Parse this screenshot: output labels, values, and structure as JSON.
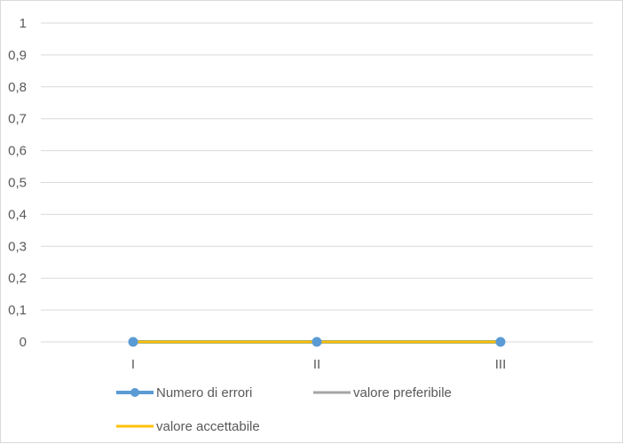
{
  "chart_data": {
    "type": "line",
    "title": "",
    "xlabel": "",
    "ylabel": "",
    "categories": [
      "I",
      "II",
      "III"
    ],
    "ylim": [
      0,
      1
    ],
    "y_ticks": [
      "0",
      "0,1",
      "0,2",
      "0,3",
      "0,4",
      "0,5",
      "0,6",
      "0,7",
      "0,8",
      "0,9",
      "1"
    ],
    "grid": true,
    "legend_position": "bottom",
    "series": [
      {
        "name": "Numero di errori",
        "values": [
          0,
          0,
          0
        ],
        "color": "#5b9bd5",
        "markers": true
      },
      {
        "name": "valore preferibile",
        "values": [
          0,
          0,
          0
        ],
        "color": "#a5a5a5",
        "markers": false
      },
      {
        "name": "valore accettabile",
        "values": [
          0,
          0,
          0
        ],
        "color": "#ffc000",
        "markers": false
      }
    ]
  }
}
